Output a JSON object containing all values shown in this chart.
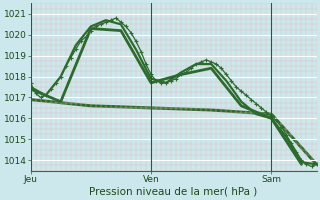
{
  "bg_color": "#cce8ec",
  "grid_color_major": "#ffffff",
  "grid_color_minor": "#e8b8b8",
  "line_color": "#2d6a2d",
  "title": "Pression niveau de la mer( hPa )",
  "ylim": [
    1013.5,
    1021.5
  ],
  "yticks": [
    1014,
    1015,
    1016,
    1017,
    1018,
    1019,
    1020,
    1021
  ],
  "day_labels": [
    "Jeu",
    "Ven",
    "Sam"
  ],
  "day_positions": [
    0,
    24,
    48
  ],
  "xlim": [
    0,
    57
  ],
  "series": [
    {
      "x": [
        0,
        1,
        2,
        3,
        4,
        5,
        6,
        7,
        8,
        9,
        10,
        11,
        12,
        13,
        14,
        15,
        16,
        17,
        18,
        19,
        20,
        21,
        22,
        23,
        24,
        25,
        26,
        27,
        28,
        29,
        30,
        31,
        32,
        33,
        34,
        35,
        36,
        37,
        38,
        39,
        40,
        41,
        42,
        43,
        44,
        45,
        46,
        47,
        48,
        49,
        50,
        51,
        52,
        53,
        54,
        55,
        56,
        57
      ],
      "y": [
        1017.7,
        1017.2,
        1017.0,
        1017.1,
        1017.4,
        1017.7,
        1018.0,
        1018.5,
        1018.9,
        1019.3,
        1019.7,
        1019.9,
        1020.2,
        1020.4,
        1020.5,
        1020.6,
        1020.7,
        1020.8,
        1020.6,
        1020.4,
        1020.1,
        1019.7,
        1019.2,
        1018.6,
        1018.1,
        1017.8,
        1017.7,
        1017.7,
        1017.8,
        1017.9,
        1018.1,
        1018.2,
        1018.4,
        1018.6,
        1018.7,
        1018.8,
        1018.7,
        1018.6,
        1018.4,
        1018.1,
        1017.8,
        1017.5,
        1017.3,
        1017.1,
        1016.9,
        1016.7,
        1016.5,
        1016.3,
        1016.1,
        1015.9,
        1015.6,
        1015.2,
        1014.8,
        1014.4,
        1014.0,
        1013.8,
        1013.7,
        1013.8
      ],
      "marker": "+",
      "markersize": 3.5,
      "linewidth": 0.9,
      "zorder": 4
    },
    {
      "x": [
        0,
        3,
        6,
        9,
        12,
        15,
        18,
        21,
        24,
        27,
        30,
        33,
        36,
        39,
        42,
        45,
        48,
        51,
        54,
        57
      ],
      "y": [
        1017.5,
        1017.1,
        1018.0,
        1019.5,
        1020.4,
        1020.7,
        1020.5,
        1019.3,
        1017.9,
        1017.7,
        1018.2,
        1018.6,
        1018.6,
        1017.8,
        1016.8,
        1016.2,
        1016.0,
        1015.1,
        1013.9,
        1013.8
      ],
      "marker": null,
      "markersize": 0,
      "linewidth": 1.6,
      "zorder": 3
    },
    {
      "x": [
        0,
        6,
        12,
        18,
        24,
        30,
        36,
        42,
        48,
        54
      ],
      "y": [
        1017.4,
        1016.8,
        1020.3,
        1020.2,
        1017.7,
        1018.1,
        1018.4,
        1016.6,
        1016.0,
        1013.8
      ],
      "marker": null,
      "markersize": 0,
      "linewidth": 2.0,
      "zorder": 2
    },
    {
      "x": [
        0,
        12,
        24,
        36,
        48,
        57
      ],
      "y": [
        1016.9,
        1016.6,
        1016.5,
        1016.4,
        1016.2,
        1013.8
      ],
      "marker": null,
      "markersize": 0,
      "linewidth": 2.2,
      "zorder": 1
    }
  ]
}
